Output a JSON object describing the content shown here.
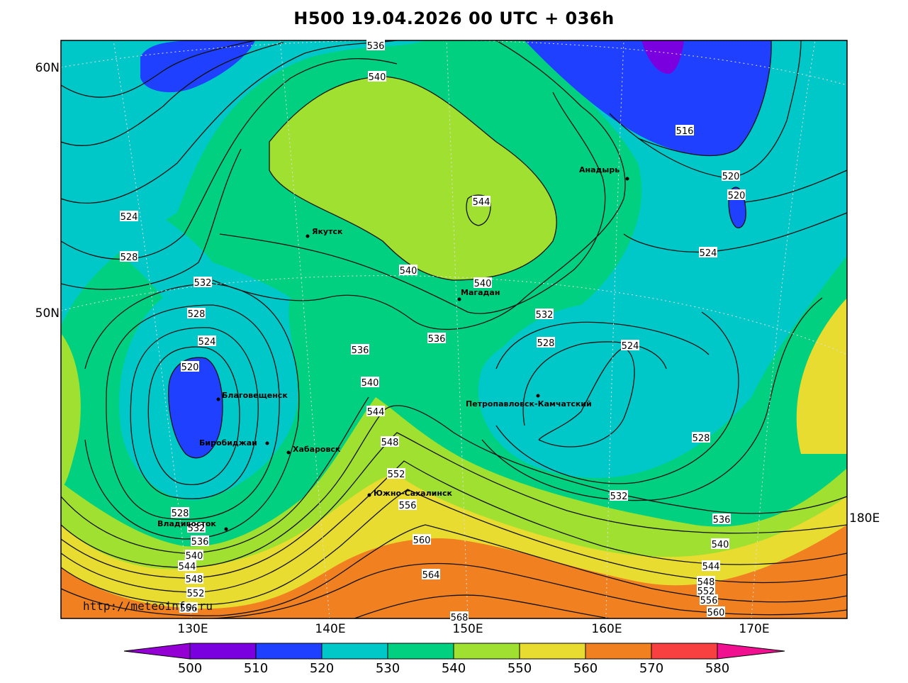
{
  "title": "H500  19.04.2026 00 UTC + 036h",
  "watermark": "http://meteoinfo.ru",
  "lat_labels": [
    "60N",
    "50N"
  ],
  "lon_labels": [
    "130E",
    "140E",
    "150E",
    "160E",
    "170E",
    "180E"
  ],
  "colorbar": {
    "ticks": [
      "500",
      "510",
      "520",
      "530",
      "540",
      "550",
      "560",
      "570",
      "580"
    ],
    "colors": [
      "#9400d3",
      "#7b00e0",
      "#2040ff",
      "#00c8c8",
      "#00d080",
      "#a0e030",
      "#e8dc30",
      "#f08020",
      "#f84040",
      "#f01090"
    ]
  },
  "cities": [
    {
      "name": "Якутск"
    },
    {
      "name": "Магадан"
    },
    {
      "name": "Анадырь"
    },
    {
      "name": "Благовещенск"
    },
    {
      "name": "Биробиджан"
    },
    {
      "name": "Хабаровск"
    },
    {
      "name": "Владивосток"
    },
    {
      "name": "Южно-Сахалинск"
    },
    {
      "name": "Петропавловск-Камчатский"
    }
  ],
  "contour_labels": [
    "536",
    "540",
    "544",
    "540",
    "540",
    "536",
    "536",
    "540",
    "544",
    "548",
    "552",
    "556",
    "560",
    "564",
    "568",
    "516",
    "520",
    "520",
    "524",
    "532",
    "528",
    "524",
    "528",
    "532",
    "536",
    "540",
    "544",
    "548",
    "552",
    "556",
    "560",
    "524",
    "528",
    "532",
    "528",
    "524",
    "520",
    "528",
    "532",
    "536",
    "540",
    "544",
    "548",
    "552",
    "556"
  ]
}
